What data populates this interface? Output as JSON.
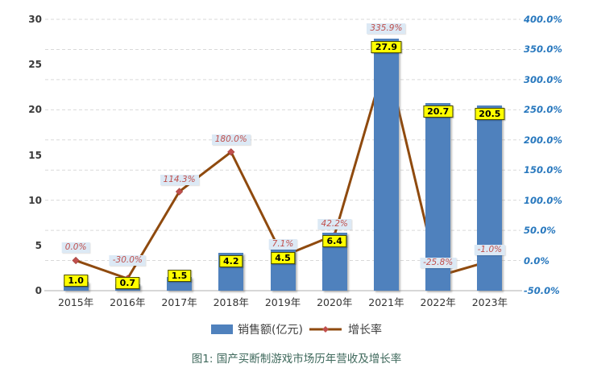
{
  "chart_data": {
    "type": "bar+line combo",
    "categories": [
      "2015年",
      "2016年",
      "2017年",
      "2018年",
      "2019年",
      "2020年",
      "2021年",
      "2022年",
      "2023年"
    ],
    "series": [
      {
        "name": "销售额(亿元)",
        "type": "bar",
        "axis": "left",
        "values": [
          1.0,
          0.7,
          1.5,
          4.2,
          4.5,
          6.4,
          27.9,
          20.7,
          20.5
        ],
        "value_labels": [
          "1.0",
          "0.7",
          "1.5",
          "4.2",
          "4.5",
          "6.4",
          "27.9",
          "20.7",
          "20.5"
        ],
        "color": "#4F81BD",
        "label_bg": "#FFFF00",
        "label_text_color": "#000000"
      },
      {
        "name": "增长率",
        "type": "line",
        "axis": "right",
        "values_pct": [
          0.0,
          -30.0,
          114.3,
          180.0,
          7.1,
          42.2,
          335.9,
          -25.8,
          -1.0
        ],
        "value_labels": [
          "0.0%",
          "-30.0%",
          "114.3%",
          "180.0%",
          "7.1%",
          "42.2%",
          "335.9%",
          "-25.8%",
          "-1.0%"
        ],
        "color": "#8F4A0E",
        "marker": "diamond",
        "marker_color": "#C0504D",
        "label_bg": "#DCE9F5",
        "label_text_color": "#C0504D"
      }
    ],
    "left_axis": {
      "min": 0,
      "max": 30,
      "tick_values": [
        0,
        5,
        10,
        15,
        20,
        25,
        30
      ],
      "tick_labels": [
        "0",
        "5",
        "10",
        "15",
        "20",
        "25",
        "30"
      ]
    },
    "right_axis": {
      "min": -50,
      "max": 400,
      "step": 50,
      "tick_labels": [
        "-50.0%",
        "0.0%",
        "50.0%",
        "100.0%",
        "150.0%",
        "200.0%",
        "250.0%",
        "300.0%",
        "350.0%",
        "400.0%"
      ],
      "text_color": "#2878BE"
    },
    "grid": {
      "show": true,
      "style": "dashed",
      "color": "#D9D9D9"
    },
    "axis_line_color": "#BFBFBF",
    "legend_position": "bottom",
    "growth_label_gaps": [
      10,
      16,
      8,
      9,
      8,
      7,
      30,
      10,
      7
    ]
  },
  "legend": {
    "bar_label": "销售额(亿元)",
    "line_label": "增长率"
  },
  "caption": "图1:  国产买断制游戏市场历年营收及增长率"
}
